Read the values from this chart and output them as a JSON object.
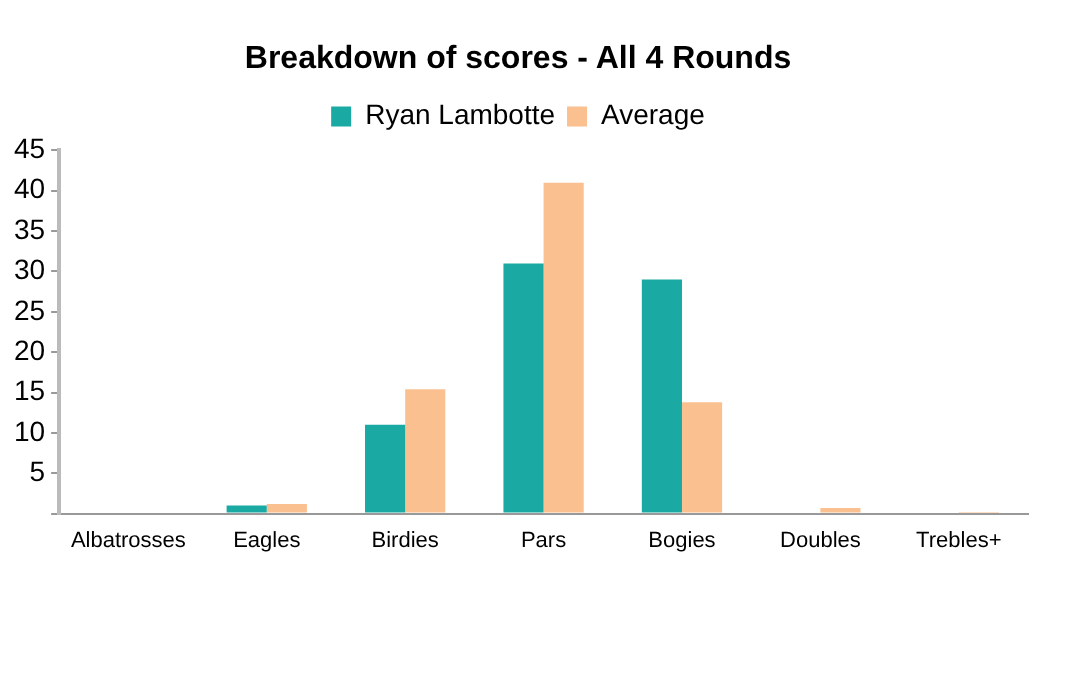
{
  "chart_data": {
    "type": "bar",
    "title": "Breakdown of scores - All 4 Rounds",
    "categories": [
      "Albatrosses",
      "Eagles",
      "Birdies",
      "Pars",
      "Bogies",
      "Doubles",
      "Trebles+"
    ],
    "series": [
      {
        "name": "Ryan Lambotte",
        "color": "#1aa9a3",
        "values": [
          0,
          1,
          11,
          31,
          29,
          0,
          0
        ]
      },
      {
        "name": "Average",
        "color": "#fac090",
        "values": [
          0,
          1.2,
          15.4,
          41,
          13.8,
          0.7,
          0.2
        ]
      }
    ],
    "ylim": [
      0,
      45
    ],
    "yticks": [
      {
        "value": 0,
        "label": null
      },
      5,
      10,
      15,
      20,
      25,
      30,
      35,
      40,
      45
    ],
    "grid": false,
    "legend": "top"
  }
}
